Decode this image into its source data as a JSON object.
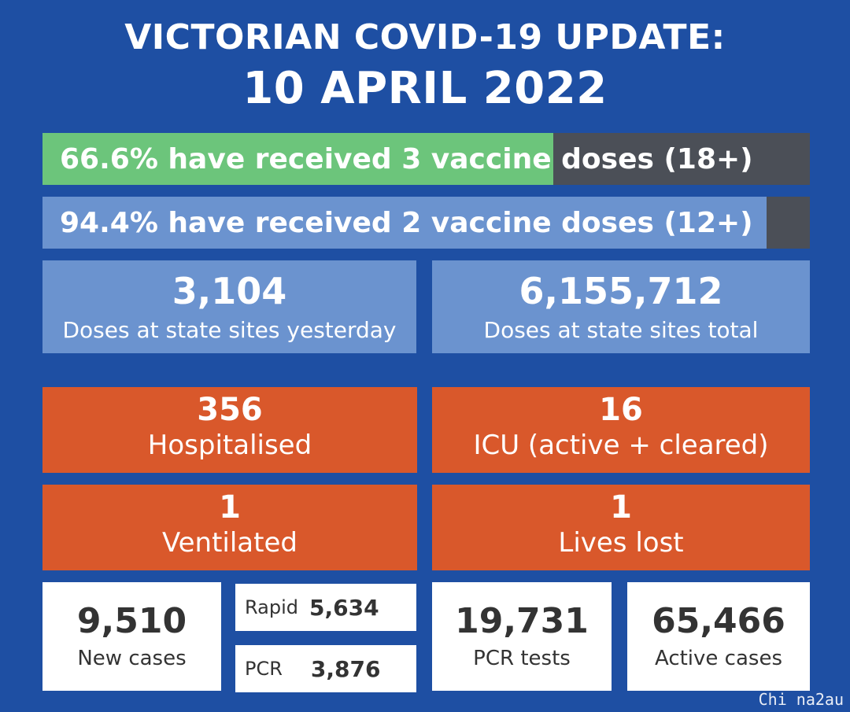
{
  "header": {
    "line1": "VICTORIAN COVID-19 UPDATE:",
    "line2": "10 APRIL 2022"
  },
  "vaccination": [
    {
      "text": "66.6% have received 3 vaccine doses (18+)",
      "fill_fraction": 0.666,
      "fill_color": "#6cc57b"
    },
    {
      "text": "94.4% have received 2 vaccine doses (12+)",
      "fill_fraction": 0.944,
      "fill_color": "#6b93cf"
    }
  ],
  "doses": {
    "yesterday": {
      "value": "3,104",
      "label": "Doses at state sites yesterday"
    },
    "total": {
      "value": "6,155,712",
      "label": "Doses at state sites total"
    }
  },
  "hospital": {
    "hospitalised": {
      "value": "356",
      "label": "Hospitalised"
    },
    "icu": {
      "value": "16",
      "label": "ICU (active + cleared)"
    },
    "ventilated": {
      "value": "1",
      "label": "Ventilated"
    },
    "lives_lost": {
      "value": "1",
      "label": "Lives lost"
    }
  },
  "cases": {
    "new_cases": {
      "value": "9,510",
      "label": "New cases"
    },
    "rapid": {
      "label": "Rapid",
      "value": "5,634"
    },
    "pcr": {
      "label": "PCR",
      "value": "3,876"
    },
    "pcr_tests": {
      "value": "19,731",
      "label": "PCR tests"
    },
    "active_cases": {
      "value": "65,466",
      "label": "Active cases"
    }
  },
  "watermark": "Chi na2au",
  "colors": {
    "background": "#1e4fa3",
    "green": "#6cc57b",
    "light_blue": "#6b93cf",
    "orange": "#d9582b",
    "bar_track": "#4b4f57"
  }
}
